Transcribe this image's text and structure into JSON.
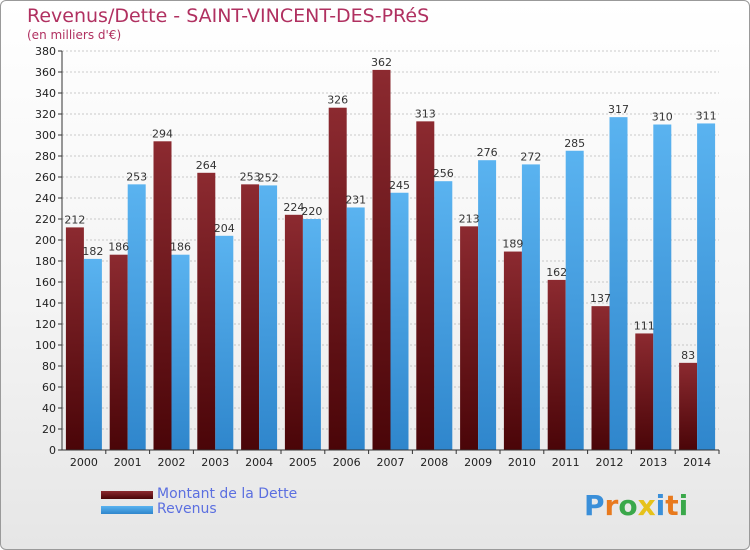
{
  "chart_data": {
    "type": "bar",
    "title": "Revenus/Dette - SAINT-VINCENT-DES-PRéS",
    "subtitle": "(en milliers d'€)",
    "xlabel": "",
    "ylabel": "",
    "ylim": [
      0,
      380
    ],
    "ytick_step": 20,
    "grid": true,
    "categories": [
      "2000",
      "2001",
      "2002",
      "2003",
      "2004",
      "2005",
      "2006",
      "2007",
      "2008",
      "2009",
      "2010",
      "2011",
      "2012",
      "2013",
      "2014"
    ],
    "series": [
      {
        "name": "Montant de la Dette",
        "color": "#7a1a22",
        "values": [
          212,
          186,
          294,
          264,
          253,
          224,
          326,
          362,
          313,
          213,
          189,
          162,
          137,
          111,
          83
        ]
      },
      {
        "name": "Revenus",
        "color": "#4da6e8",
        "values": [
          182,
          253,
          186,
          204,
          252,
          220,
          231,
          245,
          256,
          276,
          272,
          285,
          317,
          310,
          311
        ]
      }
    ],
    "legend_position": "bottom-left"
  },
  "logo": {
    "letters": [
      {
        "ch": "P",
        "color": "#3a8fd9"
      },
      {
        "ch": "r",
        "color": "#e87a1e"
      },
      {
        "ch": "o",
        "color": "#3aa84a"
      },
      {
        "ch": "x",
        "color": "#e6c21a"
      },
      {
        "ch": "i",
        "color": "#3a8fd9"
      },
      {
        "ch": "t",
        "color": "#e87a1e"
      },
      {
        "ch": "i",
        "color": "#3aa84a"
      }
    ]
  }
}
